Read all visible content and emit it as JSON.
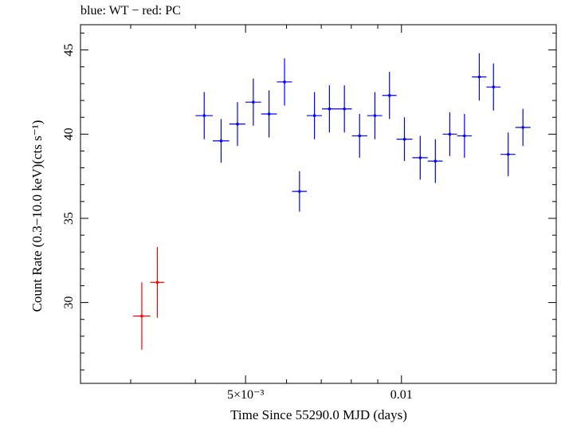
{
  "chart_data": {
    "type": "scatter",
    "title": "blue: WT − red: PC",
    "xlabel": "Time Since 55290.0 MJD (days)",
    "ylabel": "Count Rate (0.3−10.0 keV)(cts s⁻¹)",
    "x_scale": "log",
    "xlim": [
      0.0024,
      0.0199
    ],
    "ylim": [
      25.2,
      46.5
    ],
    "x_ticks": [
      {
        "value": 0.005,
        "label": "5×10⁻³"
      },
      {
        "value": 0.01,
        "label": "0.01"
      }
    ],
    "y_ticks": [
      {
        "value": 30,
        "label": "30"
      },
      {
        "value": 35,
        "label": "35"
      },
      {
        "value": 40,
        "label": "40"
      },
      {
        "value": 45,
        "label": "45"
      }
    ],
    "grid": false,
    "series": [
      {
        "name": "WT",
        "color": "#0000ff",
        "points": [
          {
            "x": 0.00416,
            "xlo": 0.004002,
            "xhi": 0.004322,
            "y": 41.1,
            "yerr": 1.4
          },
          {
            "x": 0.004485,
            "xlo": 0.004322,
            "xhi": 0.00465,
            "y": 39.6,
            "yerr": 1.3
          },
          {
            "x": 0.004823,
            "xlo": 0.00465,
            "xhi": 0.004995,
            "y": 40.6,
            "yerr": 1.3
          },
          {
            "x": 0.005175,
            "xlo": 0.004995,
            "xhi": 0.005358,
            "y": 41.9,
            "yerr": 1.4
          },
          {
            "x": 0.00555,
            "xlo": 0.005358,
            "xhi": 0.005746,
            "y": 41.2,
            "yerr": 1.4
          },
          {
            "x": 0.005946,
            "xlo": 0.005746,
            "xhi": 0.006148,
            "y": 43.1,
            "yerr": 1.4
          },
          {
            "x": 0.006355,
            "xlo": 0.006148,
            "xhi": 0.006565,
            "y": 36.6,
            "yerr": 1.2
          },
          {
            "x": 0.006792,
            "xlo": 0.006565,
            "xhi": 0.007023,
            "y": 41.1,
            "yerr": 1.4
          },
          {
            "x": 0.00726,
            "xlo": 0.007023,
            "xhi": 0.007502,
            "y": 41.5,
            "yerr": 1.4
          },
          {
            "x": 0.007759,
            "xlo": 0.007502,
            "xhi": 0.008024,
            "y": 41.5,
            "yerr": 1.4
          },
          {
            "x": 0.008301,
            "xlo": 0.008024,
            "xhi": 0.008589,
            "y": 39.9,
            "yerr": 1.3
          },
          {
            "x": 0.008885,
            "xlo": 0.008589,
            "xhi": 0.009181,
            "y": 41.1,
            "yerr": 1.4
          },
          {
            "x": 0.009481,
            "xlo": 0.009181,
            "xhi": 0.009785,
            "y": 42.3,
            "yerr": 1.4
          },
          {
            "x": 0.010133,
            "xlo": 0.009785,
            "xhi": 0.010497,
            "y": 39.7,
            "yerr": 1.3
          },
          {
            "x": 0.01087,
            "xlo": 0.010497,
            "xhi": 0.011239,
            "y": 38.6,
            "yerr": 1.3
          },
          {
            "x": 0.011626,
            "xlo": 0.011239,
            "xhi": 0.012012,
            "y": 38.4,
            "yerr": 1.3
          },
          {
            "x": 0.012396,
            "xlo": 0.012012,
            "xhi": 0.012807,
            "y": 40.0,
            "yerr": 1.3
          },
          {
            "x": 0.013233,
            "xlo": 0.012807,
            "xhi": 0.013678,
            "y": 39.9,
            "yerr": 1.3
          },
          {
            "x": 0.014134,
            "xlo": 0.013678,
            "xhi": 0.014589,
            "y": 43.4,
            "yerr": 1.4
          },
          {
            "x": 0.015056,
            "xlo": 0.014589,
            "xhi": 0.015536,
            "y": 42.8,
            "yerr": 1.4
          },
          {
            "x": 0.016072,
            "xlo": 0.015536,
            "xhi": 0.016597,
            "y": 38.8,
            "yerr": 1.3
          },
          {
            "x": 0.017161,
            "xlo": 0.016597,
            "xhi": 0.017746,
            "y": 40.4,
            "yerr": 1.1
          }
        ]
      },
      {
        "name": "PC",
        "color": "#ff0000",
        "points": [
          {
            "x": 0.003152,
            "xlo": 0.003034,
            "xhi": 0.003274,
            "y": 29.2,
            "yerr": 2.0
          },
          {
            "x": 0.003378,
            "xlo": 0.003274,
            "xhi": 0.003484,
            "y": 31.2,
            "yerr": 2.1
          }
        ]
      }
    ]
  }
}
